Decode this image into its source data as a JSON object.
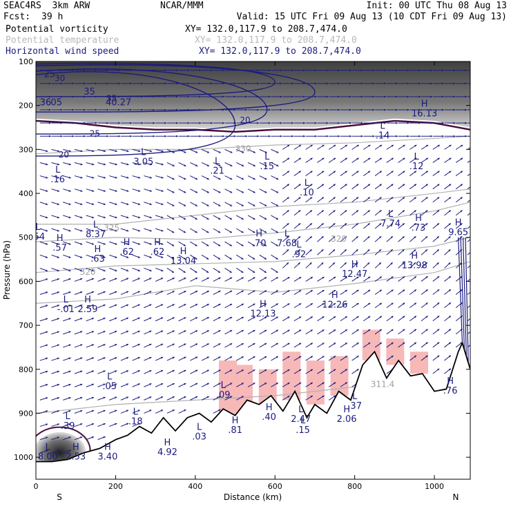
{
  "header": {
    "model": "SEAC4RS  3km ARW",
    "org": "NCAR/MMM",
    "init": "Init: 00 UTC Thu 08 Aug 13",
    "fcst_label": "Fcst:",
    "fcst_value": "39 h",
    "valid": "Valid: 15 UTC Fri 09 Aug 13 (10 CDT Fri 09 Aug 13)"
  },
  "legend": [
    {
      "label": "Potential vorticity",
      "xy": "XY= 132.0,117.9 to 208.7,474.0",
      "color": "#000000"
    },
    {
      "label": "Potential temperature",
      "xy": "XY= 132.0,117.9 to 208.7,474.0",
      "color": "#b8b8b8"
    },
    {
      "label": "Horizontal wind speed",
      "xy": "XY= 132.0,117.9 to 208.7,474.0",
      "color": "#1a1a80"
    }
  ],
  "colors": {
    "pv": "#4a0f3a",
    "theta": "#b0b0b0",
    "wind": "#1a1a80",
    "terrain": "#000000",
    "moist": "#f7b8b8",
    "strat": "#404040"
  },
  "chart_data": {
    "type": "cross-section",
    "xlabel": "Distance (km)",
    "ylabel": "Pressure (hPa)",
    "xlim": [
      0,
      1090
    ],
    "ylim": [
      1050,
      100
    ],
    "xticks": [
      "0",
      "200",
      "400",
      "600",
      "800",
      "1000"
    ],
    "yticks": [
      "100",
      "200",
      "300",
      "400",
      "500",
      "600",
      "700",
      "800",
      "900",
      "1000"
    ],
    "end_labels": {
      "left": "S",
      "right": "N"
    },
    "terrain_surface": [
      [
        0,
        1010
      ],
      [
        40,
        1010
      ],
      [
        80,
        1005
      ],
      [
        120,
        990
      ],
      [
        160,
        980
      ],
      [
        200,
        960
      ],
      [
        230,
        950
      ],
      [
        260,
        930
      ],
      [
        290,
        945
      ],
      [
        320,
        910
      ],
      [
        350,
        940
      ],
      [
        380,
        910
      ],
      [
        410,
        900
      ],
      [
        440,
        920
      ],
      [
        470,
        890
      ],
      [
        500,
        905
      ],
      [
        530,
        870
      ],
      [
        560,
        880
      ],
      [
        590,
        860
      ],
      [
        620,
        895
      ],
      [
        650,
        850
      ],
      [
        680,
        910
      ],
      [
        700,
        880
      ],
      [
        730,
        900
      ],
      [
        760,
        850
      ],
      [
        790,
        870
      ],
      [
        820,
        790
      ],
      [
        850,
        760
      ],
      [
        880,
        820
      ],
      [
        910,
        780
      ],
      [
        940,
        815
      ],
      [
        970,
        810
      ],
      [
        1000,
        850
      ],
      [
        1030,
        845
      ],
      [
        1060,
        760
      ],
      [
        1070,
        740
      ],
      [
        1090,
        800
      ]
    ],
    "markers": [
      {
        "type": "L",
        "x": 5,
        "p": 505,
        "value": ".54"
      },
      {
        "type": "H",
        "x": 60,
        "p": 530,
        "value": ".57"
      },
      {
        "type": "L",
        "x": 55,
        "p": 375,
        "value": ".16"
      },
      {
        "type": "L",
        "x": 150,
        "p": 500,
        "value": "8.37"
      },
      {
        "type": "H",
        "x": 155,
        "p": 555,
        "value": ".63"
      },
      {
        "type": "H",
        "x": 228,
        "p": 540,
        "value": ".62"
      },
      {
        "type": "H",
        "x": 305,
        "p": 540,
        "value": ".62"
      },
      {
        "type": "H",
        "x": 370,
        "p": 560,
        "value": "13.04"
      },
      {
        "type": "L",
        "x": 270,
        "p": 335,
        "value": "3.05"
      },
      {
        "type": "L",
        "x": 455,
        "p": 355,
        "value": ".21"
      },
      {
        "type": "L",
        "x": 580,
        "p": 345,
        "value": ".15"
      },
      {
        "type": "L",
        "x": 680,
        "p": 405,
        "value": ".10"
      },
      {
        "type": "H",
        "x": 560,
        "p": 520,
        "value": ".70"
      },
      {
        "type": "L",
        "x": 630,
        "p": 520,
        "value": "7.68"
      },
      {
        "type": "L",
        "x": 660,
        "p": 545,
        "value": ".92"
      },
      {
        "type": "L",
        "x": 890,
        "p": 475,
        "value": "7.74"
      },
      {
        "type": "H",
        "x": 960,
        "p": 485,
        "value": ".73"
      },
      {
        "type": "L",
        "x": 955,
        "p": 345,
        "value": ".12"
      },
      {
        "type": "L",
        "x": 870,
        "p": 275,
        "value": ".14"
      },
      {
        "type": "H",
        "x": 975,
        "p": 225,
        "value": "16.13"
      },
      {
        "type": "H",
        "x": 1060,
        "p": 495,
        "value": "9.65"
      },
      {
        "type": "H",
        "x": 800,
        "p": 590,
        "value": "12.47"
      },
      {
        "type": "H",
        "x": 950,
        "p": 570,
        "value": "13.98"
      },
      {
        "type": "H",
        "x": 750,
        "p": 660,
        "value": "12.26"
      },
      {
        "type": "H",
        "x": 570,
        "p": 680,
        "value": "12.13"
      },
      {
        "type": "L",
        "x": 75,
        "p": 670,
        "value": "-.01"
      },
      {
        "type": "H",
        "x": 130,
        "p": 670,
        "value": "2.59"
      },
      {
        "type": "L",
        "x": 185,
        "p": 845,
        "value": ".05"
      },
      {
        "type": "L",
        "x": 470,
        "p": 865,
        "value": ".09"
      },
      {
        "type": "L",
        "x": 80,
        "p": 935,
        "value": ".39"
      },
      {
        "type": "L",
        "x": 250,
        "p": 925,
        "value": ".18"
      },
      {
        "type": "L",
        "x": 410,
        "p": 960,
        "value": ".03"
      },
      {
        "type": "H",
        "x": 500,
        "p": 945,
        "value": ".81"
      },
      {
        "type": "H",
        "x": 585,
        "p": 915,
        "value": ".40"
      },
      {
        "type": "L",
        "x": 665,
        "p": 920,
        "value": "2.47"
      },
      {
        "type": "L",
        "x": 670,
        "p": 945,
        "value": ".15"
      },
      {
        "type": "H",
        "x": 780,
        "p": 920,
        "value": "2.06"
      },
      {
        "type": "L",
        "x": 800,
        "p": 890,
        "value": ".37"
      },
      {
        "type": "H",
        "x": 1040,
        "p": 855,
        "value": ".76"
      },
      {
        "type": "H",
        "x": 330,
        "p": 995,
        "value": "4.92"
      },
      {
        "type": "L",
        "x": 30,
        "p": 1005,
        "value": "8.00"
      },
      {
        "type": "H",
        "x": 100,
        "p": 1005,
        "value": "2.53"
      },
      {
        "type": "H",
        "x": 180,
        "p": 1005,
        "value": "3.40"
      }
    ],
    "upper_labels": [
      {
        "x": 10,
        "p": 200,
        "value": "36"
      },
      {
        "x": 30,
        "p": 200,
        "value": ".05"
      },
      {
        "x": 175,
        "p": 200,
        "value": "40.27"
      },
      {
        "x": 20,
        "p": 135,
        "value": "25"
      },
      {
        "x": 120,
        "p": 175,
        "value": "35"
      }
    ],
    "wind_contours": [
      {
        "label": "30",
        "p_left": 125,
        "p_peak": 215,
        "x_end": 700
      },
      {
        "label": "25",
        "p_left": 155,
        "p_peak": 265,
        "x_end": 580
      },
      {
        "label": "20",
        "p_left": 175,
        "p_peak": 315,
        "x_end": 500
      },
      {
        "label": "30",
        "p_left": 115,
        "p_peak": 180,
        "x_end": 600
      }
    ],
    "wind_labels": [
      {
        "x": 60,
        "p": 145,
        "value": "30"
      },
      {
        "x": 148,
        "p": 270,
        "value": "25"
      },
      {
        "x": 70,
        "p": 318,
        "value": "20"
      },
      {
        "x": 525,
        "p": 240,
        "value": "20"
      },
      {
        "x": 190,
        "p": 190,
        "value": "35"
      }
    ],
    "theta_contours": [
      {
        "label": "330",
        "points": [
          [
            0,
            310
          ],
          [
            200,
            300
          ],
          [
            400,
            300
          ],
          [
            600,
            290
          ],
          [
            800,
            285
          ],
          [
            1000,
            275
          ],
          [
            1090,
            270
          ]
        ]
      },
      {
        "label": "325",
        "points": [
          [
            0,
            470
          ],
          [
            200,
            470
          ],
          [
            400,
            450
          ],
          [
            600,
            430
          ],
          [
            800,
            420
          ],
          [
            1000,
            400
          ],
          [
            1090,
            390
          ]
        ]
      },
      {
        "label": "320",
        "points": [
          [
            0,
            510
          ],
          [
            200,
            500
          ],
          [
            400,
            505
          ],
          [
            600,
            490
          ],
          [
            800,
            470
          ],
          [
            1000,
            440
          ],
          [
            1090,
            420
          ]
        ]
      },
      {
        "label": "320",
        "points": [
          [
            0,
            580
          ],
          [
            200,
            565
          ],
          [
            400,
            560
          ],
          [
            600,
            555
          ],
          [
            800,
            540
          ],
          [
            1000,
            520
          ],
          [
            1090,
            500
          ]
        ]
      },
      {
        "label": "",
        "points": [
          [
            0,
            650
          ],
          [
            200,
            640
          ],
          [
            400,
            610
          ],
          [
            600,
            625
          ],
          [
            800,
            605
          ],
          [
            1000,
            580
          ],
          [
            1090,
            555
          ]
        ]
      },
      {
        "label": "311.4",
        "points": [
          [
            0,
            900
          ],
          [
            200,
            880
          ],
          [
            400,
            870
          ],
          [
            600,
            860
          ],
          [
            800,
            840
          ],
          [
            900,
            830
          ],
          [
            1000,
            850
          ]
        ]
      }
    ],
    "theta_labels": [
      {
        "x": 520,
        "p": 305,
        "value": "330"
      },
      {
        "x": 190,
        "p": 485,
        "value": "325"
      },
      {
        "x": 760,
        "p": 510,
        "value": "320"
      },
      {
        "x": 130,
        "p": 585,
        "value": "320"
      },
      {
        "x": 870,
        "p": 840,
        "value": "311.4"
      }
    ],
    "grid": false
  }
}
